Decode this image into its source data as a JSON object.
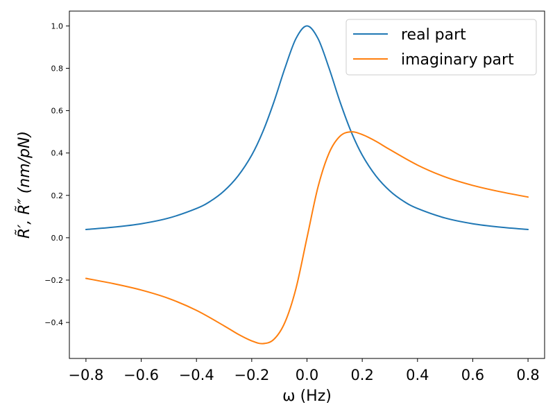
{
  "chart_data": {
    "type": "line",
    "title": "",
    "xlabel": "ω (Hz)",
    "ylabel": "R̃′, R̃″ (nm/pN)",
    "xlim": [
      -0.86,
      0.86
    ],
    "ylim": [
      -0.57,
      1.07
    ],
    "x_ticks": [
      "−0.8",
      "−0.6",
      "−0.4",
      "−0.2",
      "0.0",
      "0.2",
      "0.4",
      "0.6",
      "0.8"
    ],
    "y_ticks": [
      "−0.4",
      "−0.2",
      "0.0",
      "0.2",
      "0.4",
      "0.6",
      "0.8",
      "1.0"
    ],
    "legend_position": "top-right",
    "grid": false,
    "series": [
      {
        "name": "real part",
        "color": "#1f77b4",
        "x": [
          -0.8,
          -0.7,
          -0.6,
          -0.5,
          -0.4,
          -0.35,
          -0.3,
          -0.25,
          -0.2,
          -0.16,
          -0.12,
          -0.08,
          -0.04,
          0.0,
          0.04,
          0.08,
          0.12,
          0.16,
          0.2,
          0.25,
          0.3,
          0.35,
          0.4,
          0.5,
          0.6,
          0.7,
          0.8
        ],
        "values": [
          0.039,
          0.05,
          0.066,
          0.093,
          0.138,
          0.172,
          0.221,
          0.291,
          0.39,
          0.5,
          0.64,
          0.8,
          0.94,
          1.0,
          0.94,
          0.8,
          0.64,
          0.5,
          0.39,
          0.291,
          0.221,
          0.172,
          0.138,
          0.093,
          0.066,
          0.05,
          0.039
        ]
      },
      {
        "name": "imaginary part",
        "color": "#ff7f0e",
        "x": [
          -0.8,
          -0.7,
          -0.6,
          -0.5,
          -0.4,
          -0.3,
          -0.25,
          -0.2,
          -0.16,
          -0.12,
          -0.08,
          -0.04,
          0.0,
          0.04,
          0.08,
          0.12,
          0.16,
          0.2,
          0.25,
          0.3,
          0.4,
          0.5,
          0.6,
          0.7,
          0.8
        ],
        "values": [
          -0.192,
          -0.217,
          -0.247,
          -0.287,
          -0.343,
          -0.416,
          -0.455,
          -0.487,
          -0.5,
          -0.48,
          -0.4,
          -0.24,
          0.0,
          0.24,
          0.4,
          0.48,
          0.5,
          0.487,
          0.455,
          0.416,
          0.343,
          0.287,
          0.247,
          0.217,
          0.192
        ]
      }
    ]
  }
}
